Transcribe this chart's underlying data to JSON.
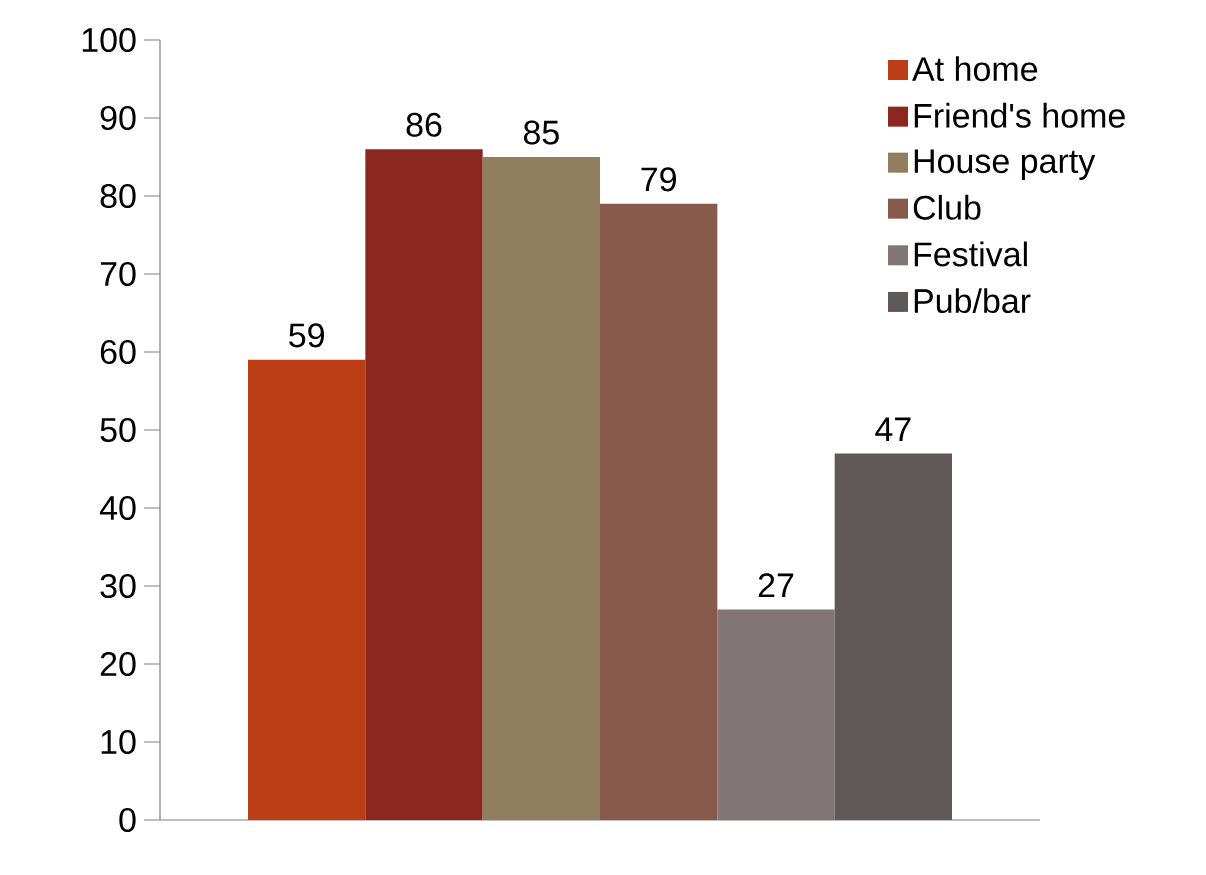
{
  "chart_data": {
    "type": "bar",
    "categories": [
      null
    ],
    "series": [
      {
        "name": "At home",
        "color": "#bb3e15",
        "values": [
          59
        ]
      },
      {
        "name": "Friend's home",
        "color": "#8b271e",
        "values": [
          86
        ]
      },
      {
        "name": "House party",
        "color": "#907e5e",
        "values": [
          85
        ]
      },
      {
        "name": "Club",
        "color": "#86594b",
        "values": [
          79
        ]
      },
      {
        "name": "Festival",
        "color": "#827575",
        "values": [
          27
        ]
      },
      {
        "name": "Pub/bar",
        "color": "#5f5a59",
        "values": [
          47
        ]
      }
    ],
    "ylim": [
      0,
      100
    ],
    "yticks": [
      0,
      10,
      20,
      30,
      40,
      50,
      60,
      70,
      80,
      90,
      100
    ],
    "data_labels": true,
    "legend": "top right",
    "grid": false
  }
}
